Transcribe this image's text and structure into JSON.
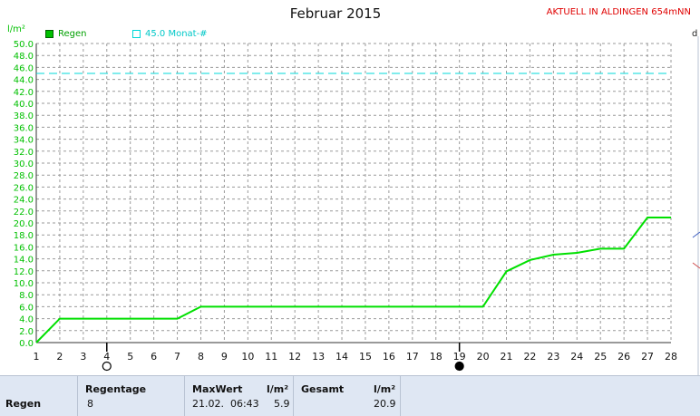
{
  "header": {
    "title": "Februar 2015",
    "station": "AKTUELL IN ALDINGEN 654mNN",
    "unit": "l/m²",
    "side_fragment": "d"
  },
  "legend": [
    {
      "label": "Regen",
      "color": "#00c000"
    },
    {
      "label": "45.0 Monat-#",
      "color": "#00d8d8"
    }
  ],
  "chart_data": {
    "type": "line",
    "ylabel": "l/m²",
    "ylim": [
      0,
      50
    ],
    "y_ticks": [
      "0.0",
      "2.0",
      "4.0",
      "6.0",
      "8.0",
      "10.0",
      "12.0",
      "14.0",
      "16.0",
      "18.0",
      "20.0",
      "22.0",
      "24.0",
      "26.0",
      "28.0",
      "30.0",
      "32.0",
      "34.0",
      "36.0",
      "38.0",
      "40.0",
      "42.0",
      "44.0",
      "46.0",
      "48.0",
      "50.0"
    ],
    "x": [
      "1",
      "2",
      "3",
      "4",
      "5",
      "6",
      "7",
      "8",
      "9",
      "10",
      "11",
      "12",
      "13",
      "14",
      "15",
      "16",
      "17",
      "18",
      "19",
      "20",
      "21",
      "22",
      "23",
      "24",
      "25",
      "26",
      "27",
      "28"
    ],
    "series": [
      {
        "name": "Regen",
        "color": "#00e000",
        "values": [
          0.0,
          4.0,
          4.0,
          4.0,
          4.0,
          4.0,
          4.0,
          6.0,
          6.0,
          6.0,
          6.0,
          6.0,
          6.0,
          6.0,
          6.0,
          6.0,
          6.0,
          6.0,
          6.0,
          6.0,
          11.9,
          13.8,
          14.7,
          15.0,
          15.7,
          15.7,
          20.9,
          20.9
        ]
      }
    ],
    "reference_line": {
      "value": 45.0,
      "label": "45.0 Monat-#",
      "color": "#00d8d8"
    },
    "grid": true,
    "markers": [
      {
        "x": "4",
        "symbol": "open-circle"
      },
      {
        "x": "19",
        "symbol": "filled-circle"
      }
    ]
  },
  "table": {
    "row_label": "Regen",
    "regentage_label": "Regentage",
    "regentage_value": "8",
    "maxwert_label": "MaxWert",
    "maxwert_unit": "l/m²",
    "maxwert_date": "21.02.  06:43",
    "maxwert_value": "5.9",
    "gesamt_label": "Gesamt",
    "gesamt_unit": "l/m²",
    "gesamt_value": "20.9"
  }
}
